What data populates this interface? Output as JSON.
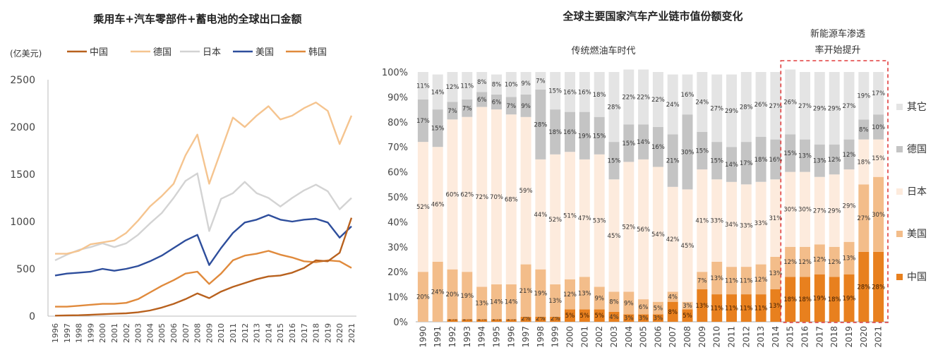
{
  "colors": {
    "china": "#B8611E",
    "germany": "#F5C48F",
    "japan": "#D3D3D3",
    "usa": "#2E4E9C",
    "korea": "#E08A3C",
    "share_china": "#E8801E",
    "share_usa": "#F3BD8A",
    "share_japan": "#FDEBDD",
    "share_germany": "#C4C4C4",
    "share_other": "#E4E4E4",
    "highlight": "#E03B3B"
  },
  "chart_data": [
    {
      "type": "line",
      "title": "乘用车+汽车零部件+蓄电池的全球出口金额",
      "unit_label": "(亿美元)",
      "x": [
        "1996",
        "1997",
        "1998",
        "1999",
        "2000",
        "2001",
        "2002",
        "2003",
        "2004",
        "2005",
        "2006",
        "2007",
        "2008",
        "2009",
        "2010",
        "2011",
        "2012",
        "2013",
        "2014",
        "2015",
        "2016",
        "2017",
        "2018",
        "2019",
        "2020",
        "2021"
      ],
      "ylim": [
        0,
        2500
      ],
      "yticks": [
        "0",
        "500",
        "1000",
        "1500",
        "2000",
        "2500"
      ],
      "series": [
        {
          "name": "中国",
          "key": "china",
          "values": [
            5,
            8,
            10,
            14,
            20,
            25,
            30,
            40,
            60,
            90,
            130,
            180,
            240,
            190,
            260,
            310,
            350,
            390,
            420,
            430,
            460,
            510,
            590,
            580,
            670,
            1040
          ]
        },
        {
          "name": "德国",
          "key": "germany",
          "values": [
            660,
            660,
            690,
            760,
            780,
            800,
            880,
            1010,
            1160,
            1270,
            1400,
            1700,
            1920,
            1400,
            1750,
            2100,
            2000,
            2120,
            2220,
            2080,
            2120,
            2200,
            2260,
            2170,
            1820,
            2120
          ]
        },
        {
          "name": "日本",
          "key": "japan",
          "values": [
            590,
            650,
            700,
            730,
            770,
            730,
            770,
            860,
            980,
            1090,
            1250,
            1430,
            1510,
            900,
            1240,
            1300,
            1420,
            1300,
            1250,
            1160,
            1250,
            1330,
            1390,
            1320,
            1130,
            1250
          ]
        },
        {
          "name": "美国",
          "key": "usa",
          "values": [
            430,
            450,
            460,
            470,
            500,
            480,
            500,
            530,
            580,
            640,
            720,
            800,
            860,
            540,
            720,
            880,
            990,
            1020,
            1070,
            1020,
            1000,
            1020,
            1030,
            990,
            830,
            950
          ]
        },
        {
          "name": "韩国",
          "key": "korea",
          "values": [
            100,
            100,
            110,
            120,
            130,
            130,
            140,
            180,
            250,
            320,
            380,
            450,
            470,
            340,
            450,
            590,
            640,
            660,
            690,
            650,
            620,
            580,
            570,
            590,
            580,
            510
          ]
        }
      ]
    },
    {
      "type": "bar",
      "stacked": true,
      "title": "全球主要国家汽车产业链市值份额变化",
      "annotation_left": "传统燃油车时代",
      "annotation_right_line1": "新能源车渗透",
      "annotation_right_line2": "率开始提升",
      "categories": [
        "1990",
        "1991",
        "1992",
        "1993",
        "1994",
        "1995",
        "1996",
        "1997",
        "1998",
        "1999",
        "2000",
        "2001",
        "2002",
        "2003",
        "2004",
        "2005",
        "2006",
        "2007",
        "2008",
        "2009",
        "2010",
        "2011",
        "2012",
        "2013",
        "2014",
        "2015",
        "2016",
        "2017",
        "2018",
        "2019",
        "2020",
        "2021"
      ],
      "yticks": [
        "0%",
        "10%",
        "20%",
        "30%",
        "40%",
        "50%",
        "60%",
        "70%",
        "80%",
        "90%",
        "100%"
      ],
      "series": [
        {
          "name": "中国",
          "key": "share_china",
          "values": [
            0,
            0,
            1,
            1,
            1,
            1,
            1,
            2,
            2,
            2,
            5,
            5,
            5,
            4,
            3,
            3,
            3,
            8,
            5,
            13,
            11,
            11,
            11,
            11,
            13,
            18,
            18,
            19,
            18,
            19,
            28,
            28
          ]
        },
        {
          "name": "美国",
          "key": "share_usa",
          "values": [
            20,
            24,
            20,
            19,
            13,
            14,
            14,
            21,
            19,
            13,
            12,
            13,
            9,
            8,
            9,
            6,
            5,
            4,
            3,
            7,
            13,
            11,
            11,
            12,
            13,
            12,
            12,
            12,
            12,
            13,
            27,
            30
          ]
        },
        {
          "name": "日本",
          "key": "share_japan",
          "values": [
            52,
            46,
            60,
            62,
            72,
            70,
            68,
            59,
            44,
            52,
            51,
            47,
            53,
            45,
            52,
            56,
            54,
            42,
            45,
            41,
            33,
            34,
            33,
            33,
            31,
            30,
            30,
            27,
            29,
            29,
            18,
            15
          ]
        },
        {
          "name": "德国",
          "key": "share_germany",
          "values": [
            17,
            15,
            7,
            7,
            6,
            6,
            7,
            9,
            28,
            18,
            16,
            19,
            15,
            15,
            15,
            14,
            16,
            21,
            30,
            15,
            15,
            14,
            17,
            18,
            16,
            15,
            13,
            13,
            12,
            12,
            8,
            10
          ]
        },
        {
          "name": "其它",
          "key": "share_other",
          "values": [
            11,
            14,
            12,
            11,
            8,
            8,
            10,
            9,
            7,
            15,
            16,
            16,
            18,
            28,
            22,
            22,
            22,
            24,
            16,
            24,
            27,
            29,
            28,
            26,
            27,
            26,
            27,
            29,
            29,
            27,
            19,
            17
          ]
        }
      ],
      "label_suffix": "%",
      "highlight_range": [
        "2015",
        "2021"
      ]
    }
  ]
}
